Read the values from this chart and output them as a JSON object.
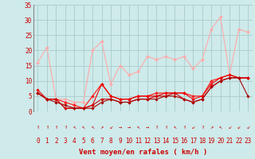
{
  "background_color": "#ceeaea",
  "grid_color": "#aacccc",
  "x_label": "Vent moyen/en rafales ( km/h )",
  "xlim": [
    -0.5,
    23.5
  ],
  "ylim": [
    0,
    35
  ],
  "yticks": [
    0,
    5,
    10,
    15,
    20,
    25,
    30,
    35
  ],
  "xticks": [
    0,
    1,
    2,
    3,
    4,
    5,
    6,
    7,
    8,
    9,
    10,
    11,
    12,
    13,
    14,
    15,
    16,
    17,
    18,
    19,
    20,
    21,
    22,
    23
  ],
  "series": [
    {
      "x": [
        0,
        1,
        2,
        3,
        4,
        5,
        6,
        7,
        8,
        9,
        10,
        11,
        12,
        13,
        14,
        15,
        16,
        17,
        18,
        19,
        20,
        21,
        22,
        23
      ],
      "y": [
        16,
        21,
        4,
        4,
        3,
        3,
        20,
        23,
        9,
        15,
        12,
        13,
        18,
        17,
        18,
        17,
        18,
        14,
        17,
        27,
        31,
        12,
        27,
        26
      ],
      "color": "#ffaaaa",
      "lw": 0.8,
      "marker": "D",
      "ms": 2.0
    },
    {
      "x": [
        0,
        1,
        2,
        3,
        4,
        5,
        6,
        7,
        8,
        9,
        10,
        11,
        12,
        13,
        14,
        15,
        16,
        17,
        18,
        19,
        20,
        21,
        22,
        23
      ],
      "y": [
        6,
        4,
        4,
        3,
        2,
        1,
        5,
        9,
        5,
        4,
        4,
        5,
        5,
        6,
        6,
        6,
        6,
        5,
        5,
        10,
        11,
        12,
        11,
        11
      ],
      "color": "#ff2222",
      "lw": 0.9,
      "marker": "D",
      "ms": 2.0
    },
    {
      "x": [
        0,
        1,
        2,
        3,
        4,
        5,
        6,
        7,
        8,
        9,
        10,
        11,
        12,
        13,
        14,
        15,
        16,
        17,
        18,
        19,
        20,
        21,
        22,
        23
      ],
      "y": [
        7,
        4,
        4,
        1,
        1,
        1,
        2,
        9,
        5,
        4,
        4,
        5,
        5,
        5,
        6,
        6,
        6,
        4,
        5,
        9,
        11,
        12,
        11,
        11
      ],
      "color": "#ee0000",
      "lw": 0.8,
      "marker": "D",
      "ms": 1.8
    },
    {
      "x": [
        0,
        1,
        2,
        3,
        4,
        5,
        6,
        7,
        8,
        9,
        10,
        11,
        12,
        13,
        14,
        15,
        16,
        17,
        18,
        19,
        20,
        21,
        22,
        23
      ],
      "y": [
        6,
        4,
        4,
        1,
        1,
        1,
        2,
        4,
        4,
        3,
        3,
        4,
        4,
        5,
        5,
        6,
        4,
        3,
        4,
        8,
        10,
        11,
        11,
        11
      ],
      "color": "#cc0000",
      "lw": 0.8,
      "marker": "D",
      "ms": 1.8
    },
    {
      "x": [
        0,
        1,
        2,
        3,
        4,
        5,
        6,
        7,
        8,
        9,
        10,
        11,
        12,
        13,
        14,
        15,
        16,
        17,
        18,
        19,
        20,
        21,
        22,
        23
      ],
      "y": [
        6,
        4,
        3,
        2,
        1,
        1,
        1,
        3,
        4,
        3,
        3,
        4,
        4,
        4,
        5,
        5,
        4,
        3,
        4,
        8,
        10,
        11,
        11,
        5
      ],
      "color": "#aa0000",
      "lw": 0.8,
      "marker": "D",
      "ms": 1.8
    }
  ],
  "wind_arrows": [
    "↑",
    "↑",
    "↑",
    "↑",
    "↖",
    "↖",
    "↖",
    "↗",
    "↙",
    "→",
    "→",
    "↖",
    "→",
    "↑",
    "↑",
    "↖",
    "↑",
    "↙",
    "↑",
    "↗",
    "↖",
    "↙",
    "↙",
    "↙"
  ],
  "label_fontsize": 6.5,
  "tick_fontsize": 5.5,
  "arrow_fontsize": 5.0,
  "label_color": "#cc0000",
  "spine_color": "#888888"
}
